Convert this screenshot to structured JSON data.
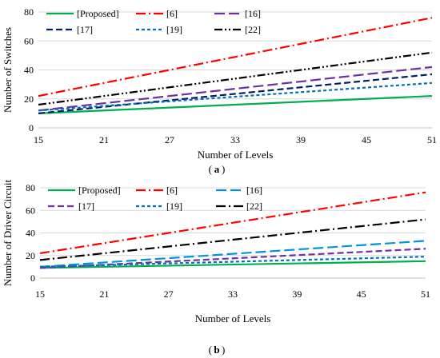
{
  "figure": {
    "charts": [
      {
        "caption_label": "a"
      },
      {
        "caption_label": "b"
      }
    ]
  },
  "chart_data": [
    {
      "type": "line",
      "caption_label": "a",
      "title": "",
      "xlabel": "Number of Levels",
      "ylabel": "Number of Switches",
      "xlim": [
        15,
        51
      ],
      "ylim": [
        0,
        80
      ],
      "x_ticks": [
        15,
        21,
        27,
        33,
        39,
        45,
        51
      ],
      "y_ticks": [
        0,
        20,
        40,
        60,
        80
      ],
      "grid": "horizontal",
      "legend": "top, 3 columns",
      "series": [
        {
          "name": "[Proposed]",
          "color": "#00b050",
          "dash": "solid",
          "x": [
            15,
            51
          ],
          "values": [
            10,
            22
          ]
        },
        {
          "name": "[6]",
          "color": "#ff0000",
          "dash": "dashdot",
          "x": [
            15,
            51
          ],
          "values": [
            22,
            76
          ]
        },
        {
          "name": "[16]",
          "color": "#7030a0",
          "dash": "longdash",
          "x": [
            15,
            51
          ],
          "values": [
            12,
            42
          ]
        },
        {
          "name": "[17]",
          "color": "#002060",
          "dash": "dash",
          "x": [
            15,
            51
          ],
          "values": [
            10,
            37
          ]
        },
        {
          "name": "[19]",
          "color": "#0070c0",
          "dash": "shortdash",
          "x": [
            15,
            51
          ],
          "values": [
            12,
            31
          ]
        },
        {
          "name": "[22]",
          "color": "#000000",
          "dash": "dashdotdot",
          "x": [
            15,
            51
          ],
          "values": [
            16,
            52
          ]
        }
      ]
    },
    {
      "type": "line",
      "caption_label": "b",
      "title": "",
      "xlabel": "Number of Levels",
      "ylabel": "Number of Driver Circuit",
      "xlim": [
        15,
        51
      ],
      "ylim": [
        0,
        80
      ],
      "x_ticks": [
        15,
        21,
        27,
        33,
        39,
        45,
        51
      ],
      "y_ticks": [
        0,
        20,
        40,
        60,
        80
      ],
      "grid": "horizontal",
      "legend": "top, 3 columns",
      "series": [
        {
          "name": "[Proposed]",
          "color": "#00b050",
          "dash": "solid",
          "x": [
            15,
            51
          ],
          "values": [
            9,
            15
          ]
        },
        {
          "name": "[6]",
          "color": "#ff0000",
          "dash": "dashdot",
          "x": [
            15,
            51
          ],
          "values": [
            22,
            76
          ]
        },
        {
          "name": "[16]",
          "color": "#0097d8",
          "dash": "longdash",
          "x": [
            15,
            51
          ],
          "values": [
            10,
            33
          ]
        },
        {
          "name": "[17]",
          "color": "#7030a0",
          "dash": "dash",
          "x": [
            15,
            51
          ],
          "values": [
            9,
            26
          ]
        },
        {
          "name": "[19]",
          "color": "#0070c0",
          "dash": "shortdash",
          "x": [
            15,
            51
          ],
          "values": [
            10,
            19
          ]
        },
        {
          "name": "[22]",
          "color": "#000000",
          "dash": "dashdot",
          "x": [
            15,
            51
          ],
          "values": [
            16,
            52
          ]
        }
      ]
    }
  ]
}
